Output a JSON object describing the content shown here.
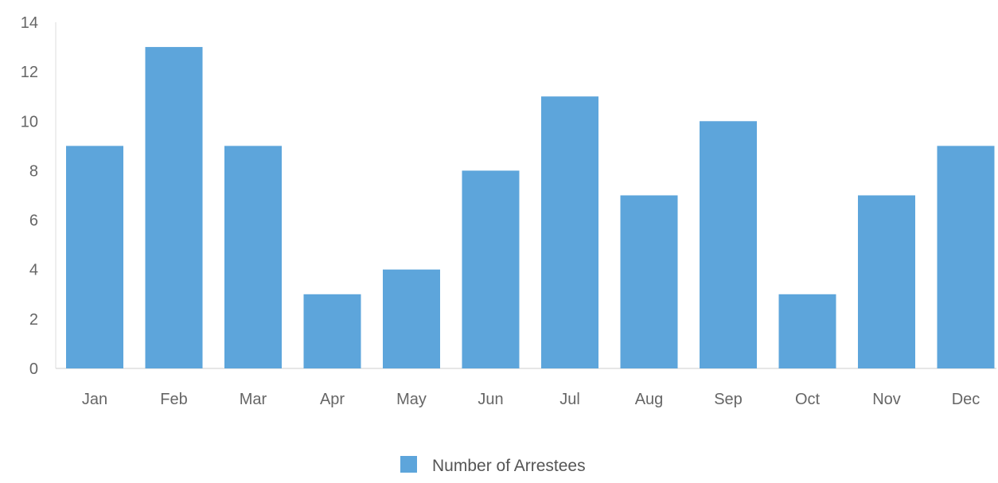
{
  "chart_data": {
    "type": "bar",
    "categories": [
      "Jan",
      "Feb",
      "Mar",
      "Apr",
      "May",
      "Jun",
      "Jul",
      "Aug",
      "Sep",
      "Oct",
      "Nov",
      "Dec"
    ],
    "series": [
      {
        "name": "Number of Arrestees",
        "values": [
          9,
          13,
          9,
          3,
          4,
          8,
          11,
          7,
          10,
          3,
          7,
          9
        ],
        "color": "#5da5db"
      }
    ],
    "yticks": [
      0,
      2,
      4,
      6,
      8,
      10,
      12,
      14
    ],
    "ylim": [
      0,
      14
    ],
    "grid": false,
    "legend_position": "bottom-center",
    "title": "",
    "xlabel": "",
    "ylabel": ""
  },
  "colors": {
    "bar": "#5da5db",
    "axis": "#dddddd",
    "tick_text": "#666666",
    "legend_text": "#555555"
  }
}
